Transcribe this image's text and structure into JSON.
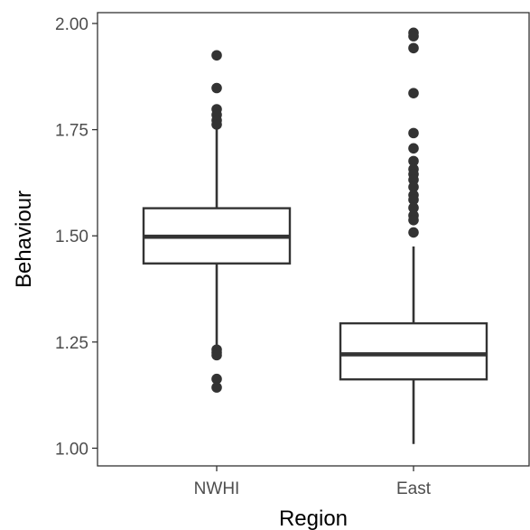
{
  "chart_data": {
    "type": "boxplot",
    "xlabel": "Region",
    "ylabel": "Behaviour",
    "ylim": [
      0.97,
      2.03
    ],
    "yticks": [
      1.0,
      1.25,
      1.5,
      1.75,
      2.0
    ],
    "ytick_labels": [
      "1.00",
      "1.25",
      "1.50",
      "1.75",
      "2.00"
    ],
    "categories": [
      "NWHI",
      "East"
    ],
    "grid": false,
    "legend": "none",
    "colors": {
      "box_stroke": "#333333",
      "fill": "#ffffff",
      "points": "#333333",
      "frame": "#333333"
    },
    "boxes": [
      {
        "category": "NWHI",
        "whisker_low": 1.24,
        "q1": 1.435,
        "median": 1.498,
        "q3": 1.565,
        "whisker_high": 1.755,
        "outliers": [
          1.925,
          1.848,
          1.798,
          1.785,
          1.772,
          1.762,
          1.232,
          1.225,
          1.219,
          1.163,
          1.143
        ]
      },
      {
        "category": "East",
        "whisker_low": 1.01,
        "q1": 1.162,
        "median": 1.221,
        "q3": 1.294,
        "whisker_high": 1.475,
        "outliers": [
          1.978,
          1.97,
          1.942,
          1.836,
          1.742,
          1.706,
          1.676,
          1.657,
          1.645,
          1.632,
          1.615,
          1.596,
          1.585,
          1.566,
          1.548,
          1.537,
          1.508
        ]
      }
    ]
  }
}
